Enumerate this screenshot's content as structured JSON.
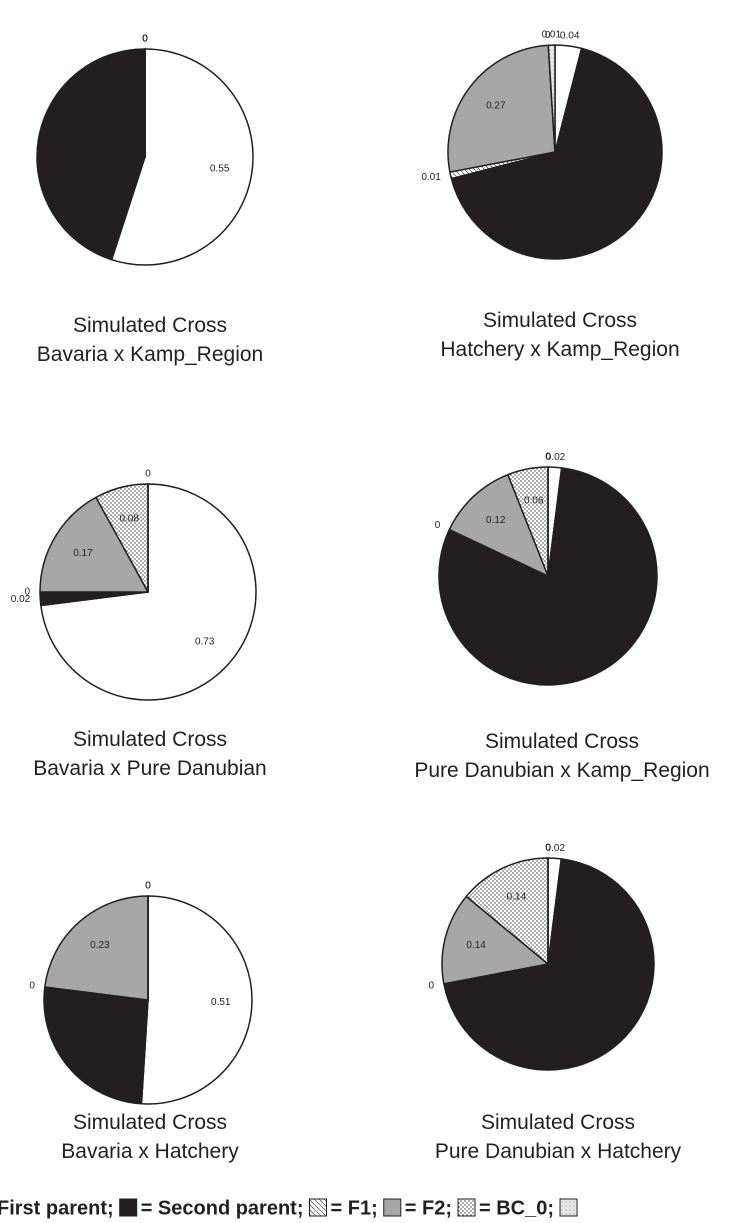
{
  "chart_data": [
    {
      "type": "pie",
      "title": "Simulated Cross",
      "subtitle": "Bavaria x Kamp_Region",
      "values": [
        0.55,
        0.45,
        0,
        0,
        0,
        0
      ],
      "value_labels": [
        "0.55",
        null,
        "0",
        "0",
        "0",
        "0"
      ]
    },
    {
      "type": "pie",
      "title": "Simulated Cross",
      "subtitle": "Hatchery x Kamp_Region",
      "values": [
        0.04,
        0.67,
        0.01,
        0.27,
        0,
        0.01
      ],
      "value_labels": [
        "0.04",
        null,
        "0.01",
        "0.27",
        "0",
        "0.01"
      ]
    },
    {
      "type": "pie",
      "title": "Simulated Cross",
      "subtitle": "Bavaria x Pure Danubian",
      "values": [
        0.73,
        0.02,
        0,
        0.17,
        0.08,
        0
      ],
      "value_labels": [
        "0.73",
        "0.02",
        "0",
        "0.17",
        "0.08",
        "0"
      ]
    },
    {
      "type": "pie",
      "title": "Simulated Cross",
      "subtitle": "Pure Danubian x Kamp_Region",
      "values": [
        0.02,
        0.8,
        0,
        0.12,
        0.06,
        0
      ],
      "value_labels": [
        "0.02",
        null,
        "0",
        "0.12",
        "0.06",
        "0"
      ]
    },
    {
      "type": "pie",
      "title": "Simulated Cross",
      "subtitle": "Bavaria x Hatchery",
      "values": [
        0.51,
        0.26,
        0,
        0.23,
        0,
        0
      ],
      "value_labels": [
        "0.51",
        null,
        "0",
        "0.23",
        "0",
        "0"
      ]
    },
    {
      "type": "pie",
      "title": "Simulated Cross",
      "subtitle": "Pure Danubian x Hatchery",
      "values": [
        0.02,
        0.7,
        0,
        0.14,
        0.14,
        0
      ],
      "value_labels": [
        "0.02",
        null,
        "0",
        "0.14",
        "0.14",
        "0"
      ]
    }
  ],
  "legend": {
    "entries": [
      "First parent;",
      "= Second parent;",
      "= F1;",
      "= F2;",
      "= BC_0;",
      null
    ],
    "fills": [
      "#ffffff",
      "#231f20",
      "hatch",
      "#a7a7a7",
      "dots",
      "light"
    ]
  }
}
